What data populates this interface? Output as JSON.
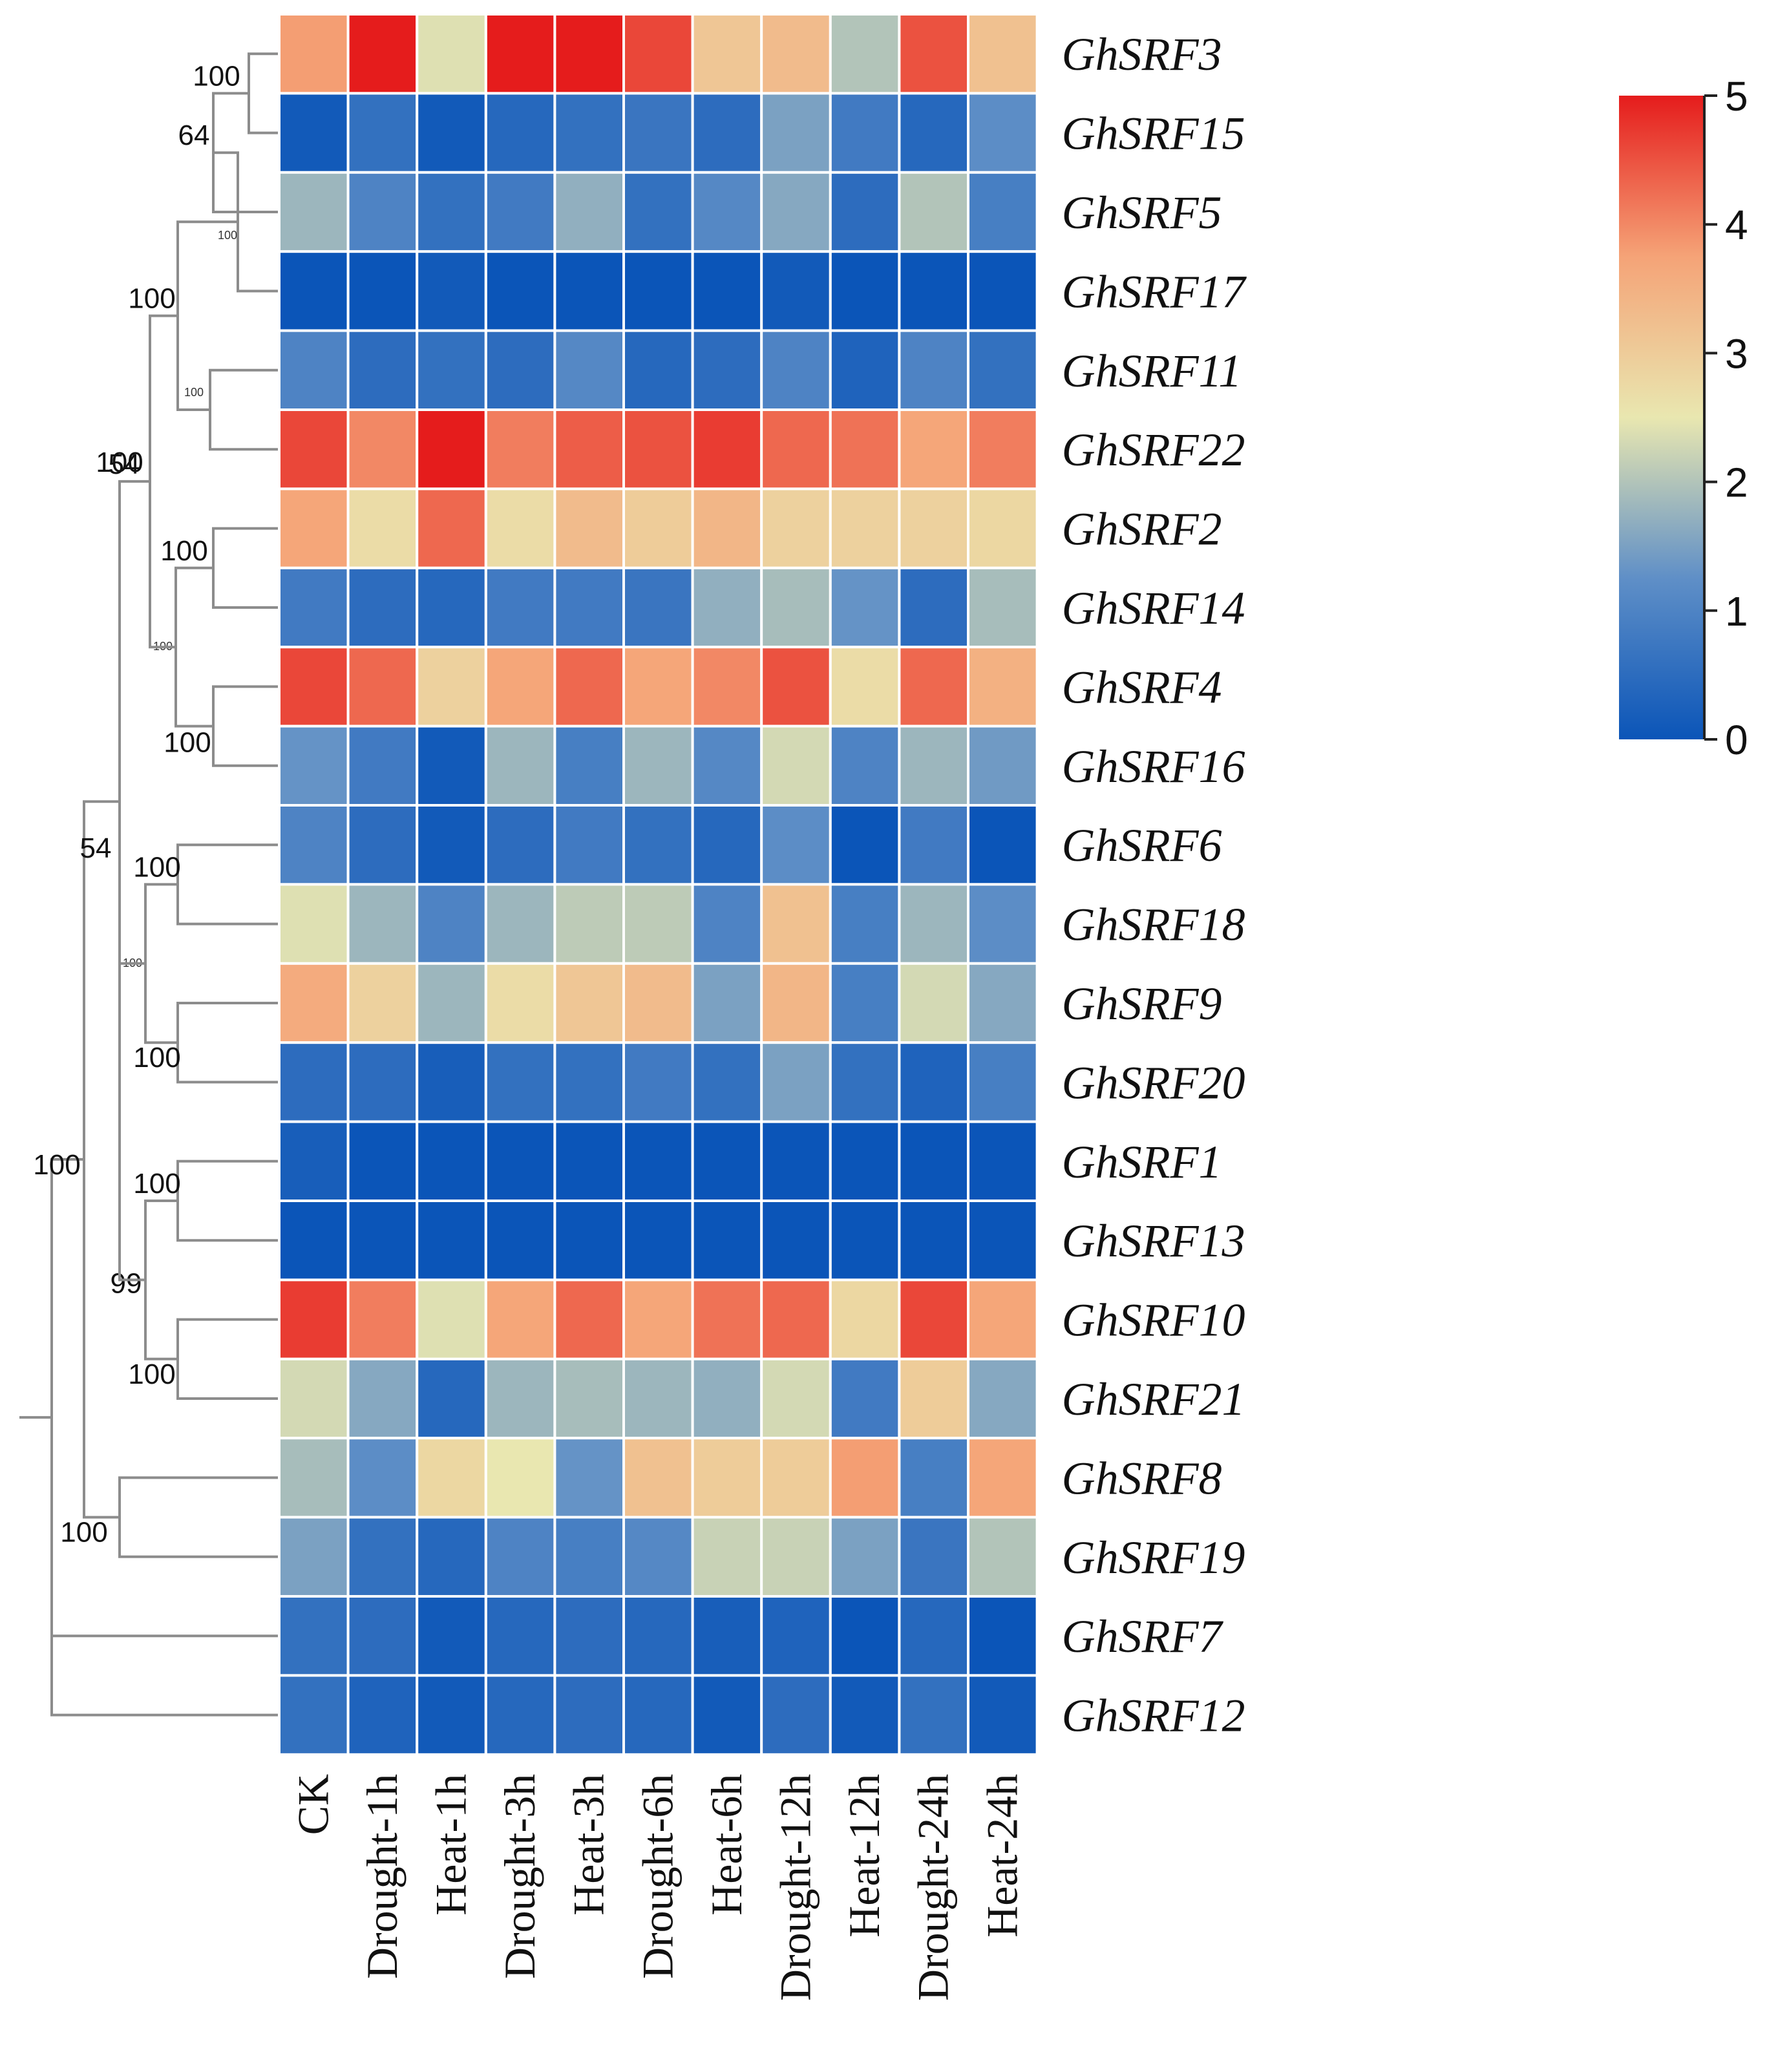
{
  "chart_data": {
    "type": "heatmap",
    "title": "",
    "xlabel": "",
    "ylabel": "",
    "columns": [
      "CK",
      "Drought-1h",
      "Heat-1h",
      "Drought-3h",
      "Heat-3h",
      "Drought-6h",
      "Heat-6h",
      "Drought-12h",
      "Heat-12h",
      "Drought-24h",
      "Heat-24h"
    ],
    "rows": [
      "GhSRF3",
      "GhSRF15",
      "GhSRF5",
      "GhSRF17",
      "GhSRF11",
      "GhSRF22",
      "GhSRF2",
      "GhSRF14",
      "GhSRF4",
      "GhSRF16",
      "GhSRF6",
      "GhSRF18",
      "GhSRF9",
      "GhSRF20",
      "GhSRF1",
      "GhSRF13",
      "GhSRF10",
      "GhSRF21",
      "GhSRF8",
      "GhSRF19",
      "GhSRF7",
      "GhSRF12"
    ],
    "values": [
      [
        3.8,
        5.0,
        2.4,
        5.0,
        5.0,
        4.6,
        3.1,
        3.3,
        2.0,
        4.5,
        3.2
      ],
      [
        0.1,
        0.6,
        0.1,
        0.4,
        0.6,
        0.7,
        0.5,
        1.5,
        0.8,
        0.4,
        1.2
      ],
      [
        1.8,
        1.0,
        0.6,
        0.8,
        1.7,
        0.6,
        1.1,
        1.6,
        0.5,
        2.0,
        0.9
      ],
      [
        0.0,
        0.0,
        0.1,
        0.0,
        0.0,
        0.0,
        0.0,
        0.1,
        0.0,
        0.0,
        0.0
      ],
      [
        1.0,
        0.5,
        0.6,
        0.5,
        1.1,
        0.4,
        0.5,
        1.0,
        0.3,
        1.0,
        0.6
      ],
      [
        4.6,
        4.0,
        5.0,
        4.1,
        4.4,
        4.5,
        4.7,
        4.3,
        4.2,
        3.7,
        4.1
      ],
      [
        3.7,
        2.7,
        4.3,
        2.7,
        3.3,
        3.0,
        3.4,
        2.9,
        2.9,
        2.9,
        2.8
      ],
      [
        0.8,
        0.5,
        0.4,
        0.8,
        0.8,
        0.7,
        1.7,
        1.9,
        1.3,
        0.5,
        1.9
      ],
      [
        4.6,
        4.3,
        2.9,
        3.7,
        4.3,
        3.7,
        4.0,
        4.5,
        2.7,
        4.3,
        3.5
      ],
      [
        1.3,
        0.8,
        0.1,
        1.8,
        0.9,
        1.8,
        1.1,
        2.3,
        1.0,
        1.8,
        1.4
      ],
      [
        1.0,
        0.5,
        0.1,
        0.5,
        0.8,
        0.6,
        0.4,
        1.2,
        0.0,
        0.8,
        0.0
      ],
      [
        2.4,
        1.8,
        1.0,
        1.8,
        2.1,
        2.1,
        1.0,
        3.2,
        0.9,
        1.8,
        1.2
      ],
      [
        3.6,
        2.9,
        1.8,
        2.7,
        3.1,
        3.3,
        1.5,
        3.4,
        0.9,
        2.3,
        1.6
      ],
      [
        0.5,
        0.5,
        0.2,
        0.6,
        0.6,
        0.8,
        0.6,
        1.5,
        0.6,
        0.3,
        0.9
      ],
      [
        0.2,
        0.0,
        0.0,
        0.0,
        0.0,
        0.0,
        0.0,
        0.0,
        0.0,
        0.0,
        0.0
      ],
      [
        0.0,
        0.0,
        0.0,
        0.0,
        0.0,
        0.0,
        0.0,
        0.0,
        0.0,
        0.0,
        0.0
      ],
      [
        4.7,
        4.1,
        2.4,
        3.7,
        4.3,
        3.7,
        4.2,
        4.3,
        2.8,
        4.6,
        3.7
      ],
      [
        2.3,
        1.6,
        0.4,
        1.8,
        1.9,
        1.8,
        1.7,
        2.3,
        0.8,
        3.0,
        1.6
      ],
      [
        1.9,
        1.2,
        2.8,
        2.5,
        1.3,
        3.2,
        3.0,
        3.0,
        3.8,
        0.9,
        3.7
      ],
      [
        1.5,
        0.6,
        0.4,
        1.0,
        0.9,
        1.1,
        2.2,
        2.2,
        1.5,
        0.7,
        2.0
      ],
      [
        0.6,
        0.5,
        0.1,
        0.4,
        0.5,
        0.4,
        0.2,
        0.3,
        0.0,
        0.4,
        0.0
      ],
      [
        0.6,
        0.3,
        0.1,
        0.4,
        0.5,
        0.4,
        0.1,
        0.5,
        0.1,
        0.6,
        0.1
      ]
    ],
    "color_scale": {
      "range": [
        0,
        5
      ],
      "ticks": [
        "0",
        "1",
        "2",
        "3",
        "4",
        "5"
      ],
      "stops": [
        "#0b55b8",
        "#5f8fc7",
        "#e9e7b0",
        "#f5a377",
        "#e51c1c"
      ]
    },
    "bootstrap_values": [
      "100",
      "64",
      "100",
      "100",
      "100",
      "100",
      "100",
      "100",
      "54",
      "100",
      "100",
      "100",
      "100",
      "100",
      "99",
      "100",
      "100",
      "100"
    ],
    "legend_position": "top-right",
    "grid": false
  }
}
